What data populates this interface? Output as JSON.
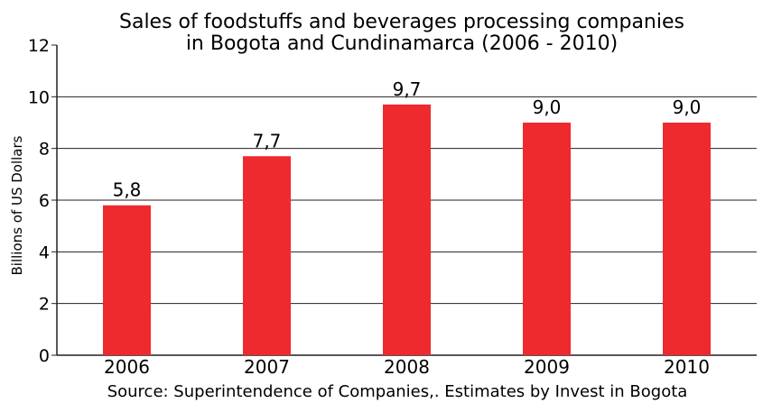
{
  "chart_data": {
    "type": "bar",
    "title_lines": [
      "Sales of foodstuffs and beverages processing companies",
      "in Bogota and Cundinamarca (2006 - 2010)"
    ],
    "ylabel": "Billions of  US Dollars",
    "xlabel": "",
    "source": "Source: Superintendence of Companies,. Estimates by Invest in Bogota",
    "categories": [
      "2006",
      "2007",
      "2008",
      "2009",
      "2010"
    ],
    "values": [
      5.8,
      7.7,
      9.7,
      9.0,
      9.0
    ],
    "value_labels": [
      "5,8",
      "7,7",
      "9,7",
      "9,0",
      "9,0"
    ],
    "ylim": [
      0,
      12
    ],
    "yticks": [
      "0",
      "2",
      "4",
      "6",
      "8",
      "10",
      "12"
    ],
    "grid": true,
    "legend": "none",
    "bar_color": "#ee2a2e",
    "grid_color": "#231f20"
  }
}
